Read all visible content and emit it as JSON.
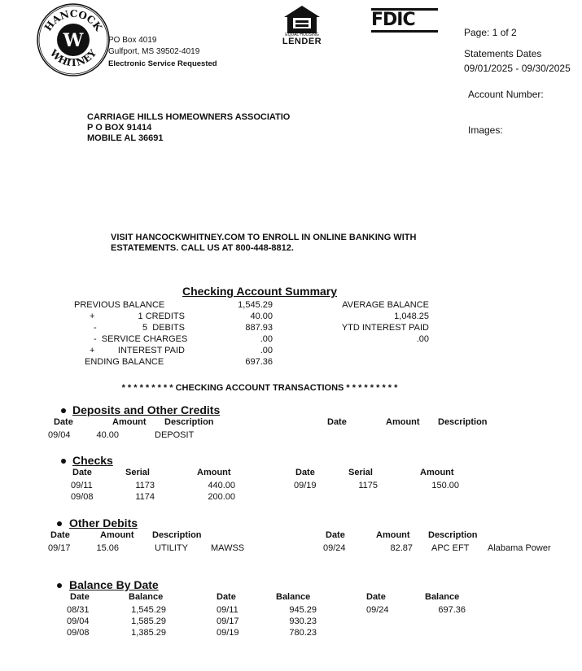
{
  "bank": {
    "logo_text_top": "HANCOCK",
    "logo_text_bottom": "WHITNEY",
    "logo_letter": "W",
    "address_line1": "PO Box 4019",
    "address_line2": "Gulfport, MS 39502-4019",
    "service_note": "Electronic Service Requested",
    "ehl_line1": "EQUAL HOUSING",
    "ehl_line2": "LENDER",
    "fdic": "FDIC"
  },
  "statement_info": {
    "page": "Page: 1 of 2",
    "dates_label": "Statements Dates",
    "dates_value": "09/01/2025 - 09/30/2025",
    "account_number_label": "Account Number:",
    "images_label": "Images:"
  },
  "customer": {
    "line1": "CARRIAGE HILLS HOMEOWNERS ASSOCIATIO",
    "line2": "P O BOX 91414",
    "line3": "MOBILE AL  36691"
  },
  "notice": {
    "line1": "VISIT HANCOCKWHITNEY.COM TO ENROLL IN ONLINE BANKING WITH",
    "line2": "ESTATEMENTS. CALL US AT 800-448-8812."
  },
  "summary": {
    "title": "Checking Account Summary",
    "previous_balance_label": "PREVIOUS BALANCE",
    "previous_balance": "1,545.29",
    "credits_sign": "+",
    "credits_label": "1 CREDITS",
    "credits": "40.00",
    "debits_sign": "-",
    "debits_label": "5  DEBITS",
    "debits": "887.93",
    "service_charges_label": "-  SERVICE CHARGES",
    "service_charges": ".00",
    "interest_sign": "+",
    "interest_label": "INTEREST PAID",
    "interest": ".00",
    "ending_balance_label": "ENDING BALANCE",
    "ending_balance": "697.36",
    "average_balance_label": "AVERAGE BALANCE",
    "average_balance": "1,048.25",
    "ytd_interest_label": "YTD INTEREST PAID",
    "ytd_interest": ".00"
  },
  "transactions_header": "* * * * * * * * * CHECKING ACCOUNT TRANSACTIONS * * * * * * * * *",
  "deposits": {
    "title": "Deposits and Other Credits",
    "headers": [
      "Date",
      "Amount",
      "Description"
    ],
    "rows": [
      {
        "date": "09/04",
        "amount": "40.00",
        "description": "DEPOSIT"
      }
    ]
  },
  "checks": {
    "title": "Checks",
    "headers": [
      "Date",
      "Serial",
      "Amount"
    ],
    "rows": [
      {
        "date": "09/11",
        "serial": "1173",
        "amount": "440.00"
      },
      {
        "date": "09/08",
        "serial": "1174",
        "amount": "200.00"
      },
      {
        "date": "09/19",
        "serial": "1175",
        "amount": "150.00"
      }
    ]
  },
  "other_debits": {
    "title": "Other Debits",
    "headers": [
      "Date",
      "Amount",
      "Description"
    ],
    "rows": [
      {
        "date": "09/17",
        "amount": "15.06",
        "description": "UTILITY",
        "payee": "MAWSS"
      },
      {
        "date": "09/24",
        "amount": "82.87",
        "description": "APC EFT",
        "payee": "Alabama Power"
      }
    ]
  },
  "balance_by_date": {
    "title": "Balance By Date",
    "headers": [
      "Date",
      "Balance"
    ],
    "rows": [
      {
        "date": "08/31",
        "balance": "1,545.29"
      },
      {
        "date": "09/04",
        "balance": "1,585.29"
      },
      {
        "date": "09/08",
        "balance": "1,385.29"
      },
      {
        "date": "09/11",
        "balance": "945.29"
      },
      {
        "date": "09/17",
        "balance": "930.23"
      },
      {
        "date": "09/19",
        "balance": "780.23"
      },
      {
        "date": "09/24",
        "balance": "697.36"
      }
    ]
  }
}
